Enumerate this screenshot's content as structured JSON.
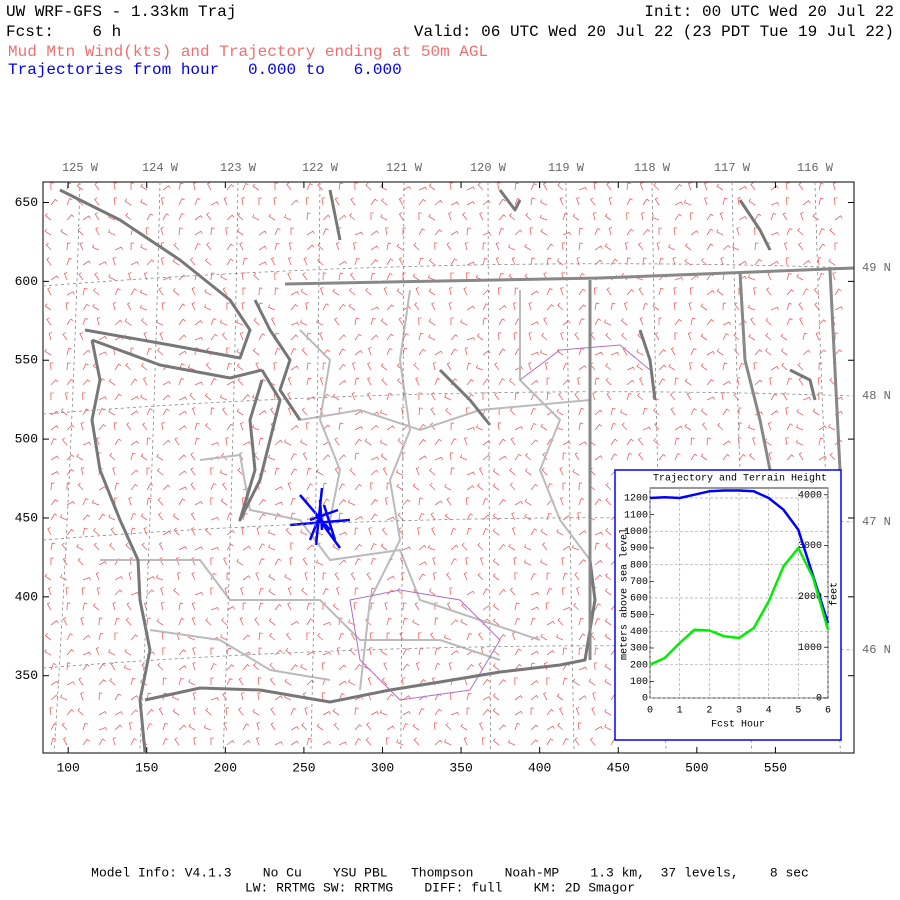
{
  "header": {
    "title": "UW WRF-GFS - 1.33km Traj",
    "init": "Init: 00 UTC Wed 20 Jul 22",
    "forecast": "Fcst:    6 h",
    "valid": "Valid: 06 UTC Wed 20 Jul 22 (23 PDT Tue 19 Jul 22)",
    "product": "Mud Mtn Wind(kts) and Trajectory ending at 50m AGL",
    "trajectory_hours": "Trajectories from hour   0.000 to   6.000"
  },
  "map": {
    "xlim": [
      84,
      600
    ],
    "xticks": [
      100,
      150,
      200,
      250,
      300,
      350,
      400,
      450,
      500,
      550
    ],
    "ylim": [
      301,
      663
    ],
    "yticks": [
      350,
      400,
      450,
      500,
      550,
      600,
      650
    ],
    "lon_labels": [
      "125 W",
      "124 W",
      "123 W",
      "122 W",
      "121 W",
      "120 W",
      "119 W",
      "118 W",
      "117 W",
      "116 W"
    ],
    "lat_labels": [
      "49 N",
      "48 N",
      "47 N",
      "46 N"
    ]
  },
  "chart_data": {
    "type": "line",
    "title": "Trajectory and Terrain Height",
    "x_label": "Fcst Hour",
    "y_label": "meters above sea level",
    "y2_label": "feet",
    "x": [
      0,
      0.5,
      1,
      1.5,
      2,
      2.5,
      3,
      3.5,
      4,
      4.5,
      5,
      5.5,
      6
    ],
    "xlim": [
      0,
      6
    ],
    "xticks": [
      0,
      1,
      2,
      3,
      4,
      5,
      6
    ],
    "ylim": [
      0,
      1260
    ],
    "yticks": [
      0,
      100,
      200,
      300,
      400,
      500,
      600,
      700,
      800,
      900,
      1000,
      1100,
      1200
    ],
    "y2lim": [
      0,
      4134
    ],
    "y2ticks": [
      0,
      1000,
      2000,
      3000,
      4000
    ],
    "grid": true,
    "series": [
      {
        "name": "Trajectory",
        "color": "#0000ff",
        "values": [
          1200,
          1205,
          1200,
          1220,
          1240,
          1245,
          1245,
          1240,
          1200,
          1130,
          1010,
          730,
          450
        ]
      },
      {
        "name": "Terrain Height",
        "color": "#00ee00",
        "values": [
          200,
          240,
          330,
          410,
          405,
          370,
          360,
          420,
          580,
          790,
          900,
          720,
          410
        ]
      }
    ]
  },
  "footer": {
    "model_info": "Model Info: V4.1.3    No Cu    YSU PBL   Thompson    Noah-MP    1.3 km,  37 levels,    8 sec",
    "physics": "LW: RRTMG SW: RRTMG    DIFF: full    KM: 2D Smagor"
  }
}
